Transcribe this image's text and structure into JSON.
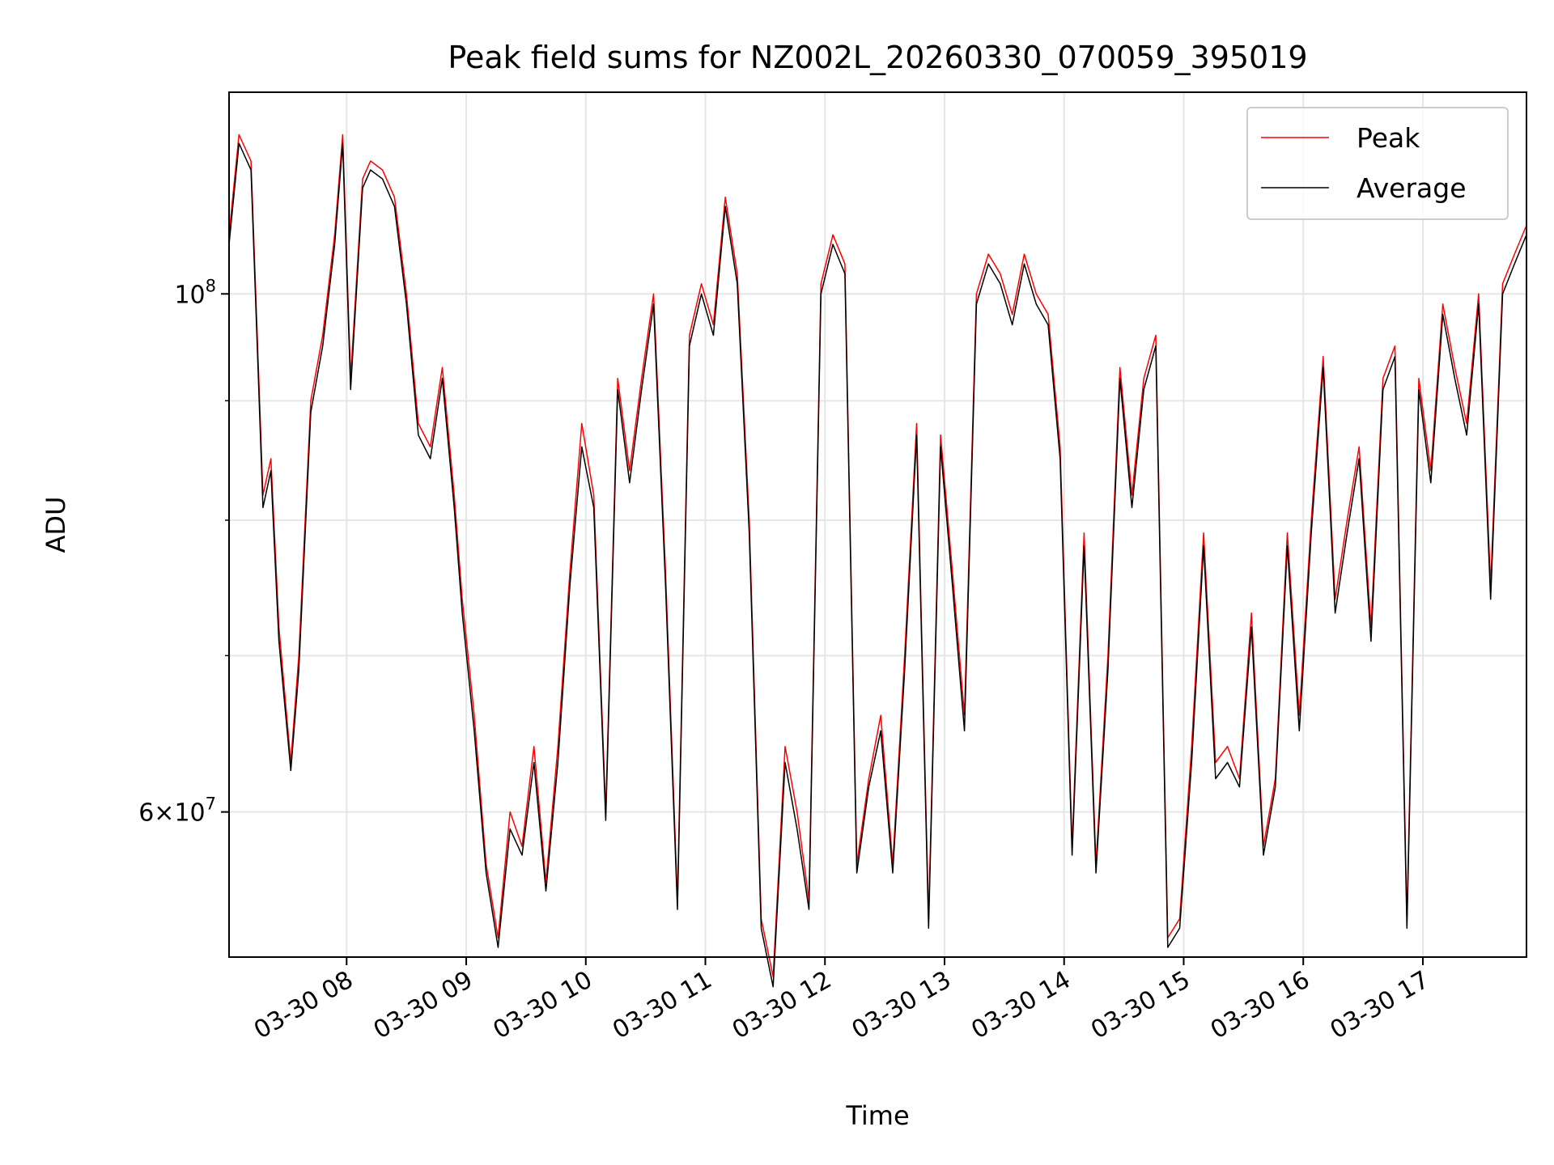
{
  "chart_data": {
    "type": "line",
    "title": "Peak field sums for NZ002L_20260330_070059_395019",
    "xlabel": "Time",
    "ylabel": "ADU",
    "yscale": "log",
    "ylim": [
      52000000,
      122000000
    ],
    "xlim": [
      "03-30 07:01",
      "03-30 17:52"
    ],
    "grid": true,
    "legend_position": "top-right",
    "x_ticks": [
      "03-30 08",
      "03-30 09",
      "03-30 10",
      "03-30 11",
      "03-30 12",
      "03-30 13",
      "03-30 14",
      "03-30 15",
      "03-30 16",
      "03-30 17"
    ],
    "y_ticks": [
      {
        "value": 100000000,
        "base": "10",
        "exp": "8"
      },
      {
        "value": 60000000,
        "mant": "6",
        "times": "×",
        "base": "10",
        "exp": "7"
      }
    ],
    "series": [
      {
        "name": "Peak",
        "color": "#ff0000",
        "x": [
          "03-30 07:01",
          "03-30 07:06",
          "03-30 07:12",
          "03-30 07:18",
          "03-30 07:22",
          "03-30 07:26",
          "03-30 07:32",
          "03-30 07:36",
          "03-30 07:42",
          "03-30 07:48",
          "03-30 07:54",
          "03-30 07:58",
          "03-30 08:02",
          "03-30 08:08",
          "03-30 08:12",
          "03-30 08:18",
          "03-30 08:24",
          "03-30 08:30",
          "03-30 08:36",
          "03-30 08:42",
          "03-30 08:48",
          "03-30 08:54",
          "03-30 08:58",
          "03-30 09:04",
          "03-30 09:10",
          "03-30 09:16",
          "03-30 09:22",
          "03-30 09:28",
          "03-30 09:34",
          "03-30 09:40",
          "03-30 09:46",
          "03-30 09:52",
          "03-30 09:58",
          "03-30 10:04",
          "03-30 10:10",
          "03-30 10:16",
          "03-30 10:22",
          "03-30 10:28",
          "03-30 10:34",
          "03-30 10:40",
          "03-30 10:46",
          "03-30 10:52",
          "03-30 10:58",
          "03-30 11:04",
          "03-30 11:10",
          "03-30 11:16",
          "03-30 11:22",
          "03-30 11:28",
          "03-30 11:34",
          "03-30 11:40",
          "03-30 11:46",
          "03-30 11:52",
          "03-30 11:58",
          "03-30 12:04",
          "03-30 12:10",
          "03-30 12:16",
          "03-30 12:22",
          "03-30 12:28",
          "03-30 12:34",
          "03-30 12:40",
          "03-30 12:46",
          "03-30 12:52",
          "03-30 12:58",
          "03-30 13:04",
          "03-30 13:10",
          "03-30 13:16",
          "03-30 13:22",
          "03-30 13:28",
          "03-30 13:34",
          "03-30 13:40",
          "03-30 13:46",
          "03-30 13:52",
          "03-30 13:58",
          "03-30 14:04",
          "03-30 14:10",
          "03-30 14:16",
          "03-30 14:22",
          "03-30 14:28",
          "03-30 14:34",
          "03-30 14:40",
          "03-30 14:46",
          "03-30 14:52",
          "03-30 14:58",
          "03-30 15:04",
          "03-30 15:10",
          "03-30 15:16",
          "03-30 15:22",
          "03-30 15:28",
          "03-30 15:34",
          "03-30 15:40",
          "03-30 15:46",
          "03-30 15:52",
          "03-30 15:58",
          "03-30 16:04",
          "03-30 16:10",
          "03-30 16:16",
          "03-30 16:22",
          "03-30 16:28",
          "03-30 16:34",
          "03-30 16:40",
          "03-30 16:46",
          "03-30 16:52",
          "03-30 16:58",
          "03-30 17:04",
          "03-30 17:10",
          "03-30 17:16",
          "03-30 17:22",
          "03-30 17:28",
          "03-30 17:34",
          "03-30 17:40",
          "03-30 17:46",
          "03-30 17:52"
        ],
        "values": [
          106000000,
          117000000,
          114000000,
          82000000,
          85000000,
          72000000,
          63000000,
          70000000,
          90000000,
          96000000,
          106000000,
          117000000,
          92000000,
          112000000,
          114000000,
          113000000,
          110000000,
          100000000,
          88000000,
          86000000,
          93000000,
          82000000,
          74000000,
          66000000,
          57000000,
          53000000,
          60000000,
          58000000,
          64000000,
          56000000,
          64000000,
          76000000,
          88000000,
          82000000,
          60000000,
          92000000,
          84000000,
          92000000,
          100000000,
          76000000,
          55000000,
          96000000,
          101000000,
          97000000,
          110000000,
          102000000,
          80000000,
          54000000,
          51000000,
          64000000,
          60000000,
          55000000,
          101000000,
          106000000,
          103000000,
          57000000,
          62000000,
          66000000,
          57000000,
          70000000,
          88000000,
          54000000,
          87000000,
          76000000,
          66000000,
          100000000,
          104000000,
          102000000,
          98000000,
          104000000,
          100000000,
          98000000,
          86000000,
          58000000,
          79000000,
          57000000,
          70000000,
          93000000,
          82000000,
          92000000,
          96000000,
          53000000,
          54000000,
          64000000,
          79000000,
          63000000,
          64000000,
          62000000,
          73000000,
          58000000,
          62000000,
          79000000,
          66000000,
          80000000,
          94000000,
          74000000,
          80000000,
          86000000,
          72000000,
          92000000,
          95000000,
          54000000,
          92000000,
          84000000,
          99000000,
          93000000,
          88000000,
          100000000,
          75000000,
          101000000,
          104000000,
          107000000
        ]
      },
      {
        "name": "Average",
        "color": "#000000",
        "x": [
          "03-30 07:01",
          "03-30 07:06",
          "03-30 07:12",
          "03-30 07:18",
          "03-30 07:22",
          "03-30 07:26",
          "03-30 07:32",
          "03-30 07:36",
          "03-30 07:42",
          "03-30 07:48",
          "03-30 07:54",
          "03-30 07:58",
          "03-30 08:02",
          "03-30 08:08",
          "03-30 08:12",
          "03-30 08:18",
          "03-30 08:24",
          "03-30 08:30",
          "03-30 08:36",
          "03-30 08:42",
          "03-30 08:48",
          "03-30 08:54",
          "03-30 08:58",
          "03-30 09:04",
          "03-30 09:10",
          "03-30 09:16",
          "03-30 09:22",
          "03-30 09:28",
          "03-30 09:34",
          "03-30 09:40",
          "03-30 09:46",
          "03-30 09:52",
          "03-30 09:58",
          "03-30 10:04",
          "03-30 10:10",
          "03-30 10:16",
          "03-30 10:22",
          "03-30 10:28",
          "03-30 10:34",
          "03-30 10:40",
          "03-30 10:46",
          "03-30 10:52",
          "03-30 10:58",
          "03-30 11:04",
          "03-30 11:10",
          "03-30 11:16",
          "03-30 11:22",
          "03-30 11:28",
          "03-30 11:34",
          "03-30 11:40",
          "03-30 11:46",
          "03-30 11:52",
          "03-30 11:58",
          "03-30 12:04",
          "03-30 12:10",
          "03-30 12:16",
          "03-30 12:22",
          "03-30 12:28",
          "03-30 12:34",
          "03-30 12:40",
          "03-30 12:46",
          "03-30 12:52",
          "03-30 12:58",
          "03-30 13:04",
          "03-30 13:10",
          "03-30 13:16",
          "03-30 13:22",
          "03-30 13:28",
          "03-30 13:34",
          "03-30 13:40",
          "03-30 13:46",
          "03-30 13:52",
          "03-30 13:58",
          "03-30 14:04",
          "03-30 14:10",
          "03-30 14:16",
          "03-30 14:22",
          "03-30 14:28",
          "03-30 14:34",
          "03-30 14:40",
          "03-30 14:46",
          "03-30 14:52",
          "03-30 14:58",
          "03-30 15:04",
          "03-30 15:10",
          "03-30 15:16",
          "03-30 15:22",
          "03-30 15:28",
          "03-30 15:34",
          "03-30 15:40",
          "03-30 15:46",
          "03-30 15:52",
          "03-30 15:58",
          "03-30 16:04",
          "03-30 16:10",
          "03-30 16:16",
          "03-30 16:22",
          "03-30 16:28",
          "03-30 16:34",
          "03-30 16:40",
          "03-30 16:46",
          "03-30 16:52",
          "03-30 16:58",
          "03-30 17:04",
          "03-30 17:10",
          "03-30 17:16",
          "03-30 17:22",
          "03-30 17:28",
          "03-30 17:34",
          "03-30 17:40",
          "03-30 17:46",
          "03-30 17:52"
        ],
        "values": [
          105000000,
          116000000,
          113000000,
          81000000,
          84000000,
          71000000,
          62500000,
          69000000,
          89000000,
          95000000,
          105000000,
          116000000,
          91000000,
          111000000,
          113000000,
          112000000,
          109000000,
          99000000,
          87000000,
          85000000,
          92000000,
          81000000,
          73000000,
          65000000,
          56500000,
          52500000,
          59000000,
          57500000,
          63000000,
          55500000,
          63000000,
          75000000,
          86000000,
          81000000,
          59500000,
          91000000,
          83000000,
          91000000,
          99000000,
          75000000,
          54500000,
          95000000,
          100000000,
          96000000,
          109000000,
          101000000,
          79000000,
          53500000,
          50500000,
          63000000,
          59000000,
          54500000,
          100000000,
          105000000,
          102000000,
          56500000,
          61500000,
          65000000,
          56500000,
          69000000,
          87000000,
          53500000,
          86000000,
          75000000,
          65000000,
          99000000,
          103000000,
          101000000,
          97000000,
          103000000,
          99000000,
          97000000,
          85000000,
          57500000,
          78000000,
          56500000,
          69000000,
          92000000,
          81000000,
          91000000,
          95000000,
          52500000,
          53500000,
          63000000,
          78000000,
          62000000,
          63000000,
          61500000,
          72000000,
          57500000,
          61500000,
          78000000,
          65000000,
          79000000,
          93000000,
          73000000,
          79000000,
          85000000,
          71000000,
          91000000,
          94000000,
          53500000,
          91000000,
          83000000,
          98000000,
          92000000,
          87000000,
          99000000,
          74000000,
          100000000,
          103000000,
          106000000
        ]
      }
    ]
  }
}
